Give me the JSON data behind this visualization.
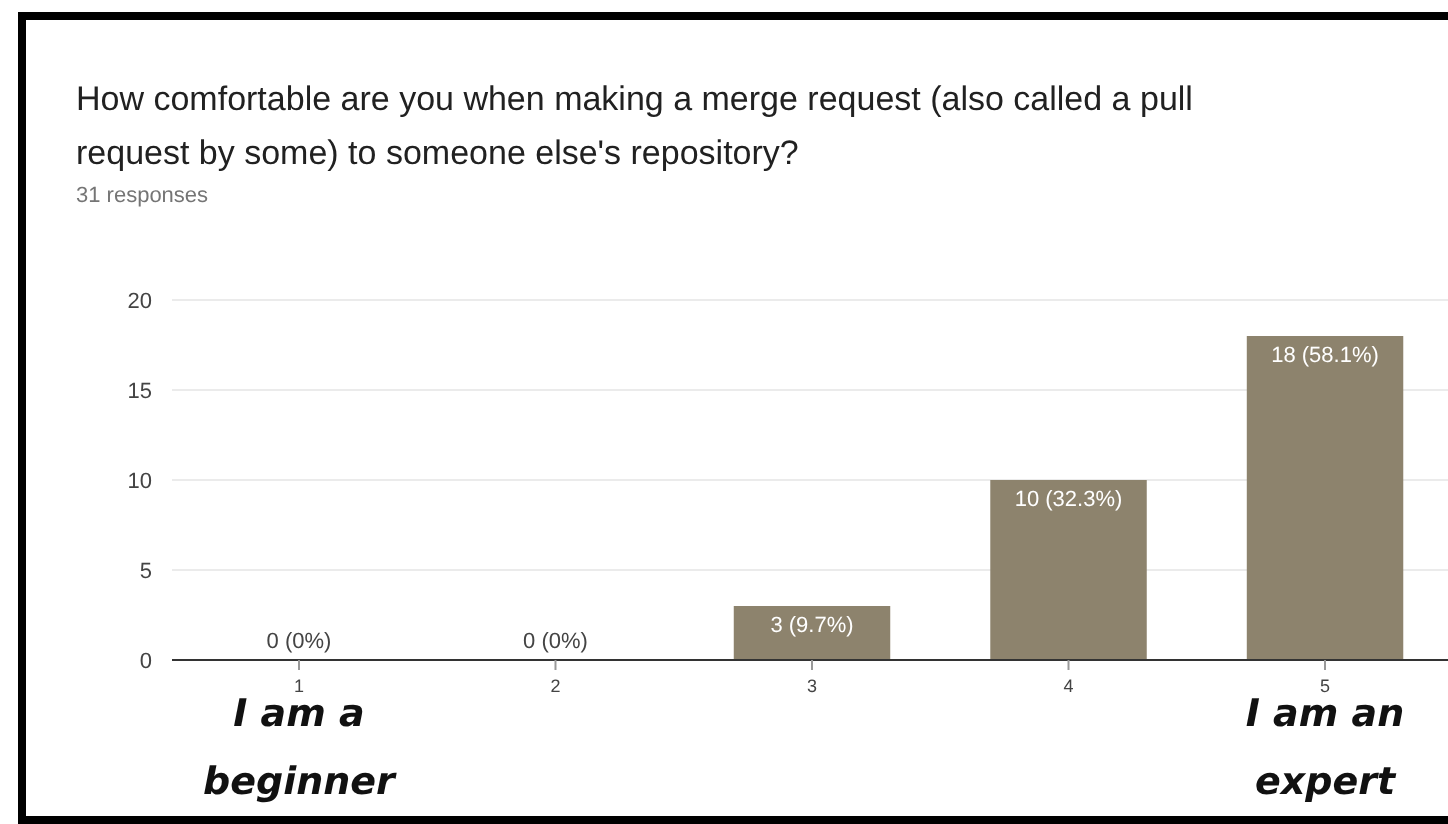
{
  "chart_data": {
    "type": "bar",
    "title": "How comfortable are you when making a merge request (also called a pull request by some) to someone else's repository?",
    "subtitle": "31 responses",
    "categories": [
      "1",
      "2",
      "3",
      "4",
      "5"
    ],
    "values": [
      0,
      0,
      3,
      10,
      18
    ],
    "value_labels": [
      "0 (0%)",
      "0 (0%)",
      "3 (9.7%)",
      "10 (32.3%)",
      "18 (58.1%)"
    ],
    "color": "#8d836d",
    "ylim": [
      0,
      20
    ],
    "yticks": [
      0,
      5,
      10,
      15,
      20
    ],
    "grid": "y",
    "annotations": [
      "I am a beginner",
      "I am an expert"
    ]
  }
}
